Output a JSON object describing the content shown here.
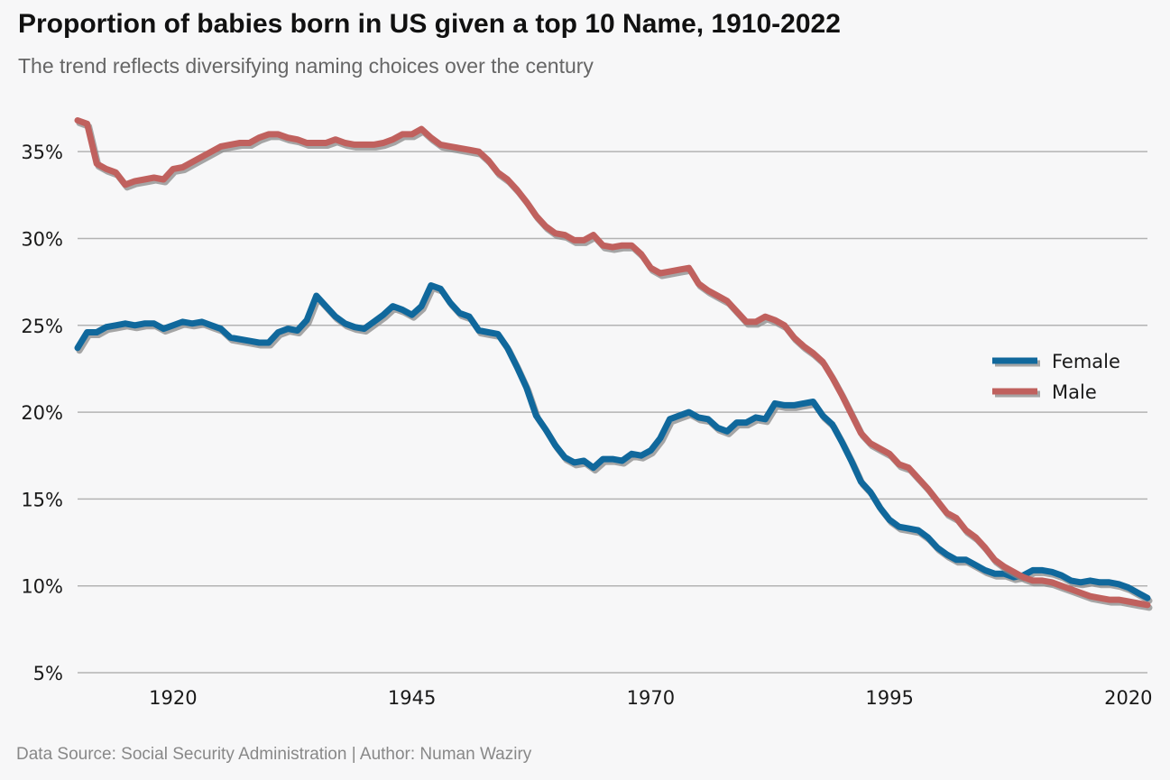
{
  "header": {
    "title": "Proportion of babies born in US given a top 10 Name, 1910-2022",
    "subtitle": "The trend reflects diversifying naming choices over the century"
  },
  "footer": {
    "source": "Data Source: Social Security Administration  |  Author: Numan Waziry"
  },
  "chart_data": {
    "type": "line",
    "title": "Proportion of babies born in US given a top 10 Name, 1910-2022",
    "subtitle": "The trend reflects diversifying naming choices over the century",
    "xlabel": "",
    "ylabel": "",
    "xlim": [
      1910,
      2022
    ],
    "ylim": [
      5,
      37.5
    ],
    "x_ticks": [
      1920,
      1945,
      1970,
      1995,
      2020
    ],
    "x_tick_labels": [
      "1920",
      "1945",
      "1970",
      "1995",
      "2020"
    ],
    "y_ticks": [
      5,
      10,
      15,
      20,
      25,
      30,
      35
    ],
    "y_tick_labels": [
      "5%",
      "10%",
      "15%",
      "20%",
      "25%",
      "30%",
      "35%"
    ],
    "grid": "horizontal",
    "legend_position": "right",
    "x": [
      1910,
      1911,
      1912,
      1913,
      1914,
      1915,
      1916,
      1917,
      1918,
      1919,
      1920,
      1921,
      1922,
      1923,
      1924,
      1925,
      1926,
      1927,
      1928,
      1929,
      1930,
      1931,
      1932,
      1933,
      1934,
      1935,
      1936,
      1937,
      1938,
      1939,
      1940,
      1941,
      1942,
      1943,
      1944,
      1945,
      1946,
      1947,
      1948,
      1949,
      1950,
      1951,
      1952,
      1953,
      1954,
      1955,
      1956,
      1957,
      1958,
      1959,
      1960,
      1961,
      1962,
      1963,
      1964,
      1965,
      1966,
      1967,
      1968,
      1969,
      1970,
      1971,
      1972,
      1973,
      1974,
      1975,
      1976,
      1977,
      1978,
      1979,
      1980,
      1981,
      1982,
      1983,
      1984,
      1985,
      1986,
      1987,
      1988,
      1989,
      1990,
      1991,
      1992,
      1993,
      1994,
      1995,
      1996,
      1997,
      1998,
      1999,
      2000,
      2001,
      2002,
      2003,
      2004,
      2005,
      2006,
      2007,
      2008,
      2009,
      2010,
      2011,
      2012,
      2013,
      2014,
      2015,
      2016,
      2017,
      2018,
      2019,
      2020,
      2021,
      2022
    ],
    "series": [
      {
        "name": "Female",
        "color": "#10689c",
        "values": [
          23.7,
          24.6,
          24.6,
          24.9,
          25.0,
          25.1,
          25.0,
          25.1,
          25.1,
          24.8,
          25.0,
          25.2,
          25.1,
          25.2,
          25.0,
          24.8,
          24.3,
          24.2,
          24.1,
          24.0,
          24.0,
          24.6,
          24.8,
          24.7,
          25.3,
          26.7,
          26.1,
          25.5,
          25.1,
          24.9,
          24.8,
          25.2,
          25.6,
          26.1,
          25.9,
          25.6,
          26.1,
          27.3,
          27.1,
          26.3,
          25.7,
          25.5,
          24.7,
          24.6,
          24.5,
          23.7,
          22.6,
          21.4,
          19.8,
          19.0,
          18.1,
          17.4,
          17.1,
          17.2,
          16.8,
          17.3,
          17.3,
          17.2,
          17.6,
          17.5,
          17.8,
          18.5,
          19.6,
          19.8,
          20.0,
          19.7,
          19.6,
          19.1,
          18.9,
          19.4,
          19.4,
          19.7,
          19.6,
          20.5,
          20.4,
          20.4,
          20.5,
          20.6,
          19.8,
          19.3,
          18.3,
          17.2,
          16.0,
          15.4,
          14.5,
          13.8,
          13.4,
          13.3,
          13.2,
          12.8,
          12.2,
          11.8,
          11.5,
          11.5,
          11.2,
          10.9,
          10.7,
          10.7,
          10.5,
          10.6,
          10.9,
          10.9,
          10.8,
          10.6,
          10.3,
          10.2,
          10.3,
          10.2,
          10.2,
          10.1,
          9.9,
          9.6,
          9.3
        ]
      },
      {
        "name": "Male",
        "color": "#c0615e",
        "values": [
          36.8,
          36.6,
          34.3,
          34.0,
          33.8,
          33.1,
          33.3,
          33.4,
          33.5,
          33.4,
          34.0,
          34.1,
          34.4,
          34.7,
          35.0,
          35.3,
          35.4,
          35.5,
          35.5,
          35.8,
          36.0,
          36.0,
          35.8,
          35.7,
          35.5,
          35.5,
          35.5,
          35.7,
          35.5,
          35.4,
          35.4,
          35.4,
          35.5,
          35.7,
          36.0,
          36.0,
          36.3,
          35.8,
          35.4,
          35.3,
          35.2,
          35.1,
          35.0,
          34.5,
          33.8,
          33.4,
          32.8,
          32.1,
          31.3,
          30.7,
          30.3,
          30.2,
          29.9,
          29.9,
          30.2,
          29.6,
          29.5,
          29.6,
          29.6,
          29.1,
          28.3,
          28.0,
          28.1,
          28.2,
          28.3,
          27.4,
          27.0,
          26.7,
          26.4,
          25.8,
          25.2,
          25.2,
          25.5,
          25.3,
          25.0,
          24.3,
          23.8,
          23.4,
          22.9,
          22.0,
          21.0,
          19.9,
          18.8,
          18.2,
          17.9,
          17.6,
          17.0,
          16.8,
          16.2,
          15.6,
          14.9,
          14.2,
          13.9,
          13.2,
          12.8,
          12.2,
          11.5,
          11.1,
          10.8,
          10.5,
          10.3,
          10.3,
          10.2,
          10.0,
          9.8,
          9.6,
          9.4,
          9.3,
          9.2,
          9.2,
          9.1,
          9.0,
          8.9
        ]
      }
    ]
  }
}
